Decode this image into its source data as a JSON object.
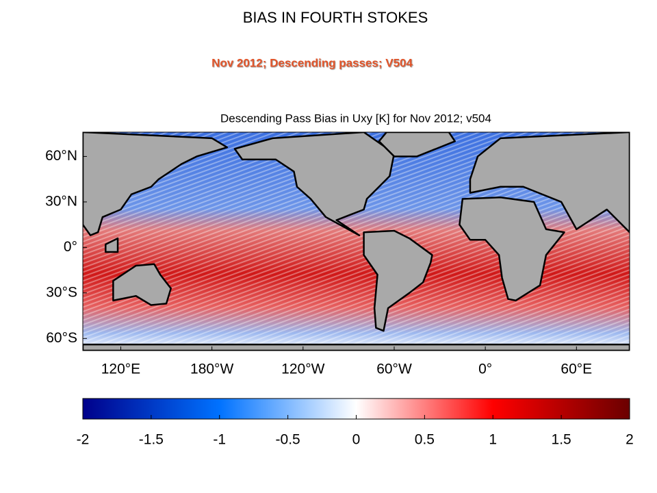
{
  "slide_title": "BIAS IN FOURTH STOKES",
  "subtitle": "Nov 2012; Descending passes; V504",
  "chart_data": {
    "type": "heatmap",
    "title": "Descending Pass Bias in Uxy [K] for Nov 2012; v504",
    "xlim": [
      95,
      455
    ],
    "xticks": [
      {
        "value": 120,
        "label": "120°E"
      },
      {
        "value": 180,
        "label": "180°W"
      },
      {
        "value": 240,
        "label": "120°W"
      },
      {
        "value": 300,
        "label": "60°W"
      },
      {
        "value": 360,
        "label": "0°"
      },
      {
        "value": 420,
        "label": "60°E"
      }
    ],
    "ylim": [
      -68,
      76
    ],
    "yticks": [
      {
        "value": 60,
        "label": "60°N"
      },
      {
        "value": 30,
        "label": "30°N"
      },
      {
        "value": 0,
        "label": "0°"
      },
      {
        "value": -30,
        "label": "30°S"
      },
      {
        "value": -60,
        "label": "60°S"
      }
    ],
    "land_color": "#a9a9a9",
    "colorbar": {
      "lim": [
        -2,
        2
      ],
      "ticks": [
        -2,
        -1.5,
        -1,
        -0.5,
        0,
        0.5,
        1,
        1.5,
        2
      ],
      "colors": [
        "#00008b",
        "#0072ff",
        "#ffffff",
        "#ff0000",
        "#6b0000"
      ]
    }
  }
}
